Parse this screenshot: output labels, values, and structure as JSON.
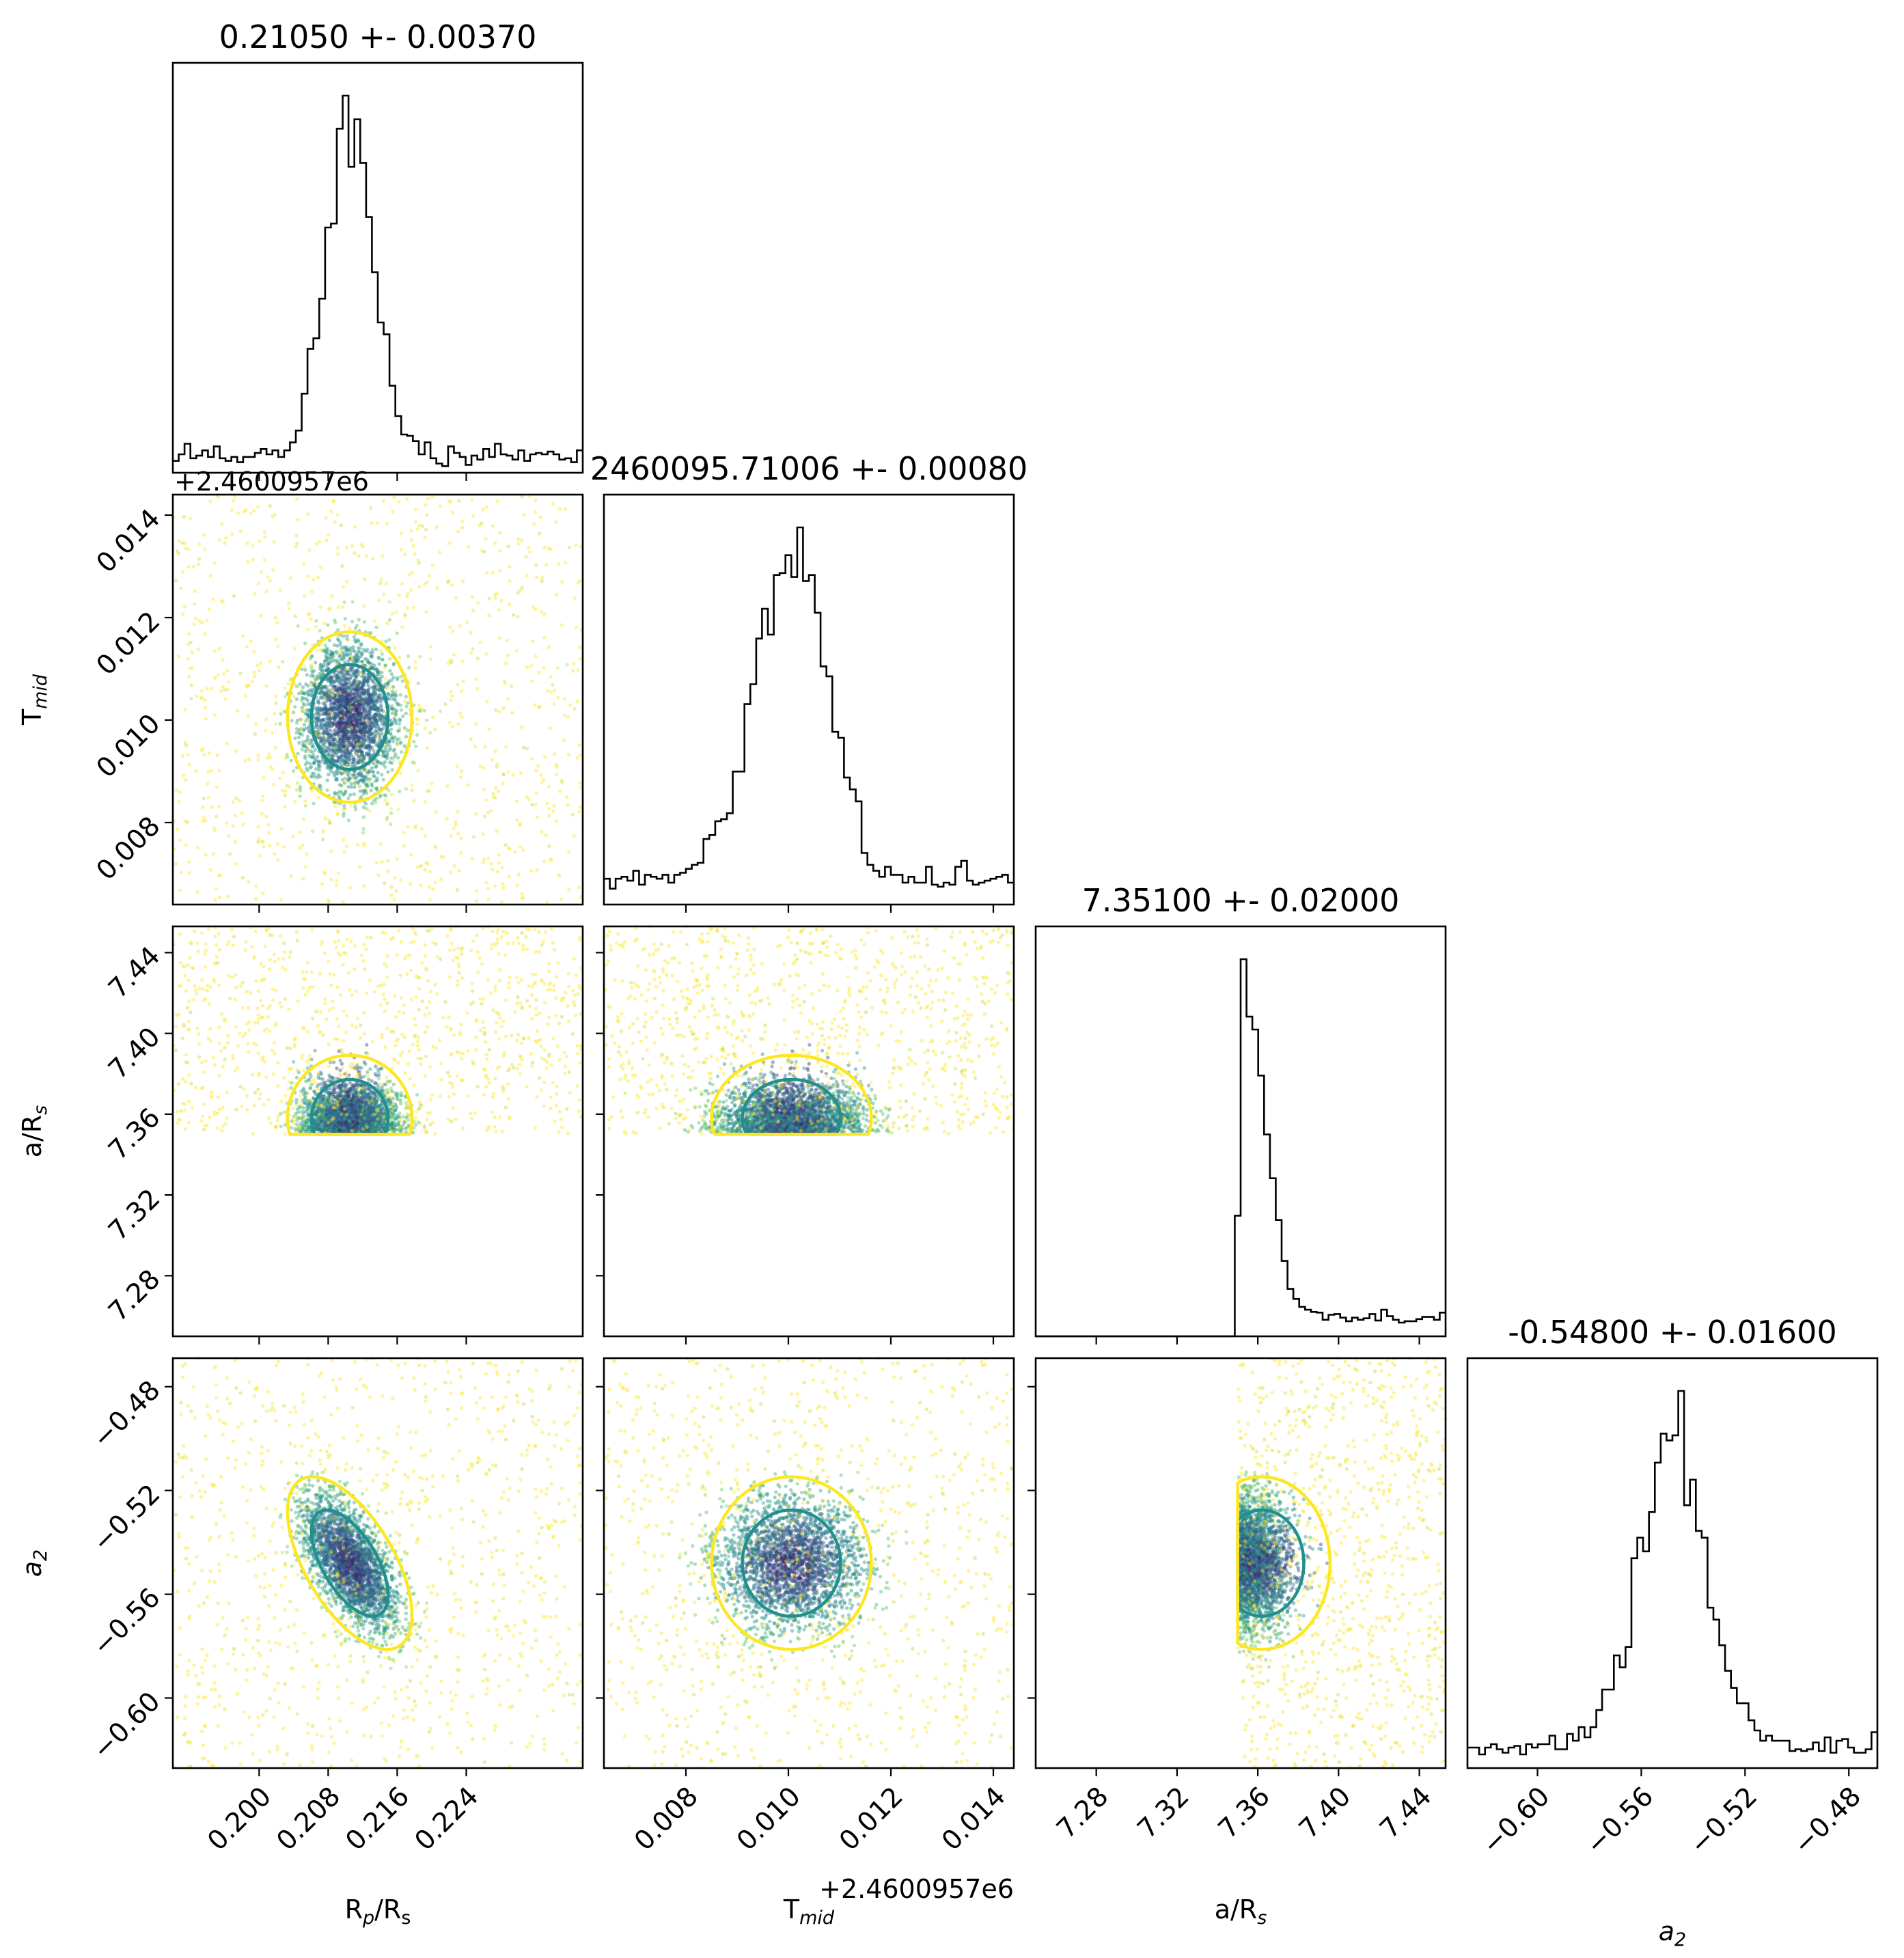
{
  "chart_data": {
    "type": "scatter",
    "kind": "corner-plot",
    "colormap": "viridis",
    "parameters": [
      {
        "key": "rp",
        "label_main": "R",
        "label_sub": "p",
        "label_tail": "/R",
        "label_tail_sub": "s",
        "axis_range": [
          0.19,
          0.2375
        ],
        "ticks": [
          0.2,
          0.208,
          0.216,
          0.224
        ],
        "tick_labels": [
          "0.200",
          "0.208",
          "0.216",
          "0.224"
        ],
        "median": 0.2105,
        "sigma": 0.0037
      },
      {
        "key": "tmid",
        "label_main": "T",
        "label_sub": "mid",
        "offset_text": "+2.4600957e6",
        "axis_range": [
          0.0064,
          0.0144
        ],
        "ticks": [
          0.008,
          0.01,
          0.012,
          0.014
        ],
        "tick_labels": [
          "0.008",
          "0.010",
          "0.012",
          "0.014"
        ],
        "median": 0.01006,
        "sigma": 0.0008
      },
      {
        "key": "ars",
        "label_main": "a/R",
        "label_sub": "s",
        "axis_range": [
          7.25,
          7.453
        ],
        "ticks": [
          7.28,
          7.32,
          7.36,
          7.4,
          7.44
        ],
        "tick_labels": [
          "7.28",
          "7.32",
          "7.36",
          "7.40",
          "7.44"
        ],
        "median": 7.351,
        "sigma": 0.02,
        "lower_bound": 7.35
      },
      {
        "key": "a2",
        "label_main": "a",
        "label_sub": "2",
        "label_italic": true,
        "axis_range": [
          -0.627,
          -0.469
        ],
        "ticks": [
          -0.6,
          -0.56,
          -0.52,
          -0.48
        ],
        "tick_labels": [
          "−0.60",
          "−0.56",
          "−0.52",
          "−0.48"
        ],
        "median": -0.548,
        "sigma": 0.016
      }
    ],
    "titles": [
      "0.21050 +- 0.00370",
      "2460095.71006 +- 0.00080",
      "7.35100 +- 0.02000",
      "-0.54800 +- 0.01600"
    ],
    "contour_levels": [
      "1-sigma (teal #21908d)",
      "2-sigma (yellow #fde725)"
    ],
    "correlations": {
      "rp_tmid": 0.0,
      "rp_ars": 0.0,
      "rp_a2": -0.6,
      "tmid_ars": 0.0,
      "tmid_a2": 0.0,
      "ars_a2": 0.0
    },
    "colors": {
      "inner_contour": "#21908d",
      "outer_contour": "#fde725",
      "histogram": "#000000"
    }
  }
}
